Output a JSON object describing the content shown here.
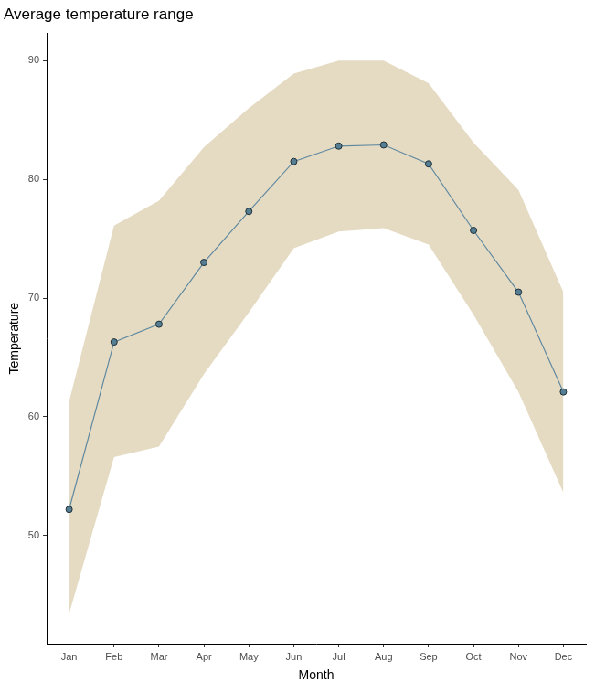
{
  "chart_data": {
    "type": "line",
    "title": "Average temperature range",
    "x_label": "Month",
    "y_label": "Temperature",
    "categories": [
      "Jan",
      "Feb",
      "Mar",
      "Apr",
      "May",
      "Jun",
      "Jul",
      "Aug",
      "Sep",
      "Oct",
      "Nov",
      "Dec"
    ],
    "values": [
      52.2,
      66.3,
      67.8,
      73.0,
      77.3,
      81.5,
      82.8,
      82.9,
      81.3,
      75.7,
      70.5,
      62.1
    ],
    "color": "#6089a0",
    "marker": "circle",
    "band": {
      "lower": [
        43.4,
        56.6,
        57.5,
        63.6,
        68.8,
        74.2,
        75.6,
        75.9,
        74.5,
        68.6,
        62.1,
        53.6
      ],
      "upper": [
        61.3,
        76.1,
        78.2,
        82.7,
        86.0,
        88.9,
        90.0,
        90.0,
        88.1,
        83.1,
        79.1,
        70.5
      ],
      "color": "#e5dbc3"
    },
    "ylim": [
      40.9,
      92.3
    ],
    "yticks": [
      50,
      60,
      70,
      80,
      90
    ],
    "grid": false
  }
}
